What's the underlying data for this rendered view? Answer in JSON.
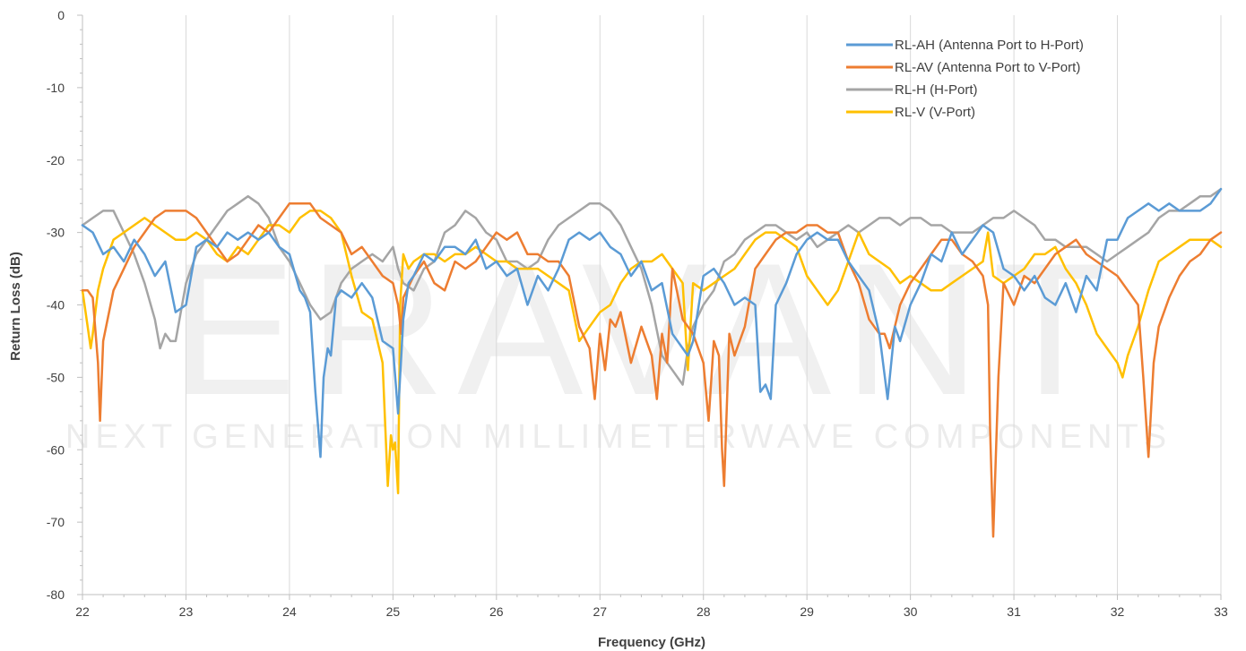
{
  "watermark": {
    "brand": "ERAVANT",
    "tagline": "NEXT GENERATION MILLIMETERWAVE COMPONENTS"
  },
  "chart_data": {
    "type": "line",
    "title": "",
    "xlabel": "Frequency (GHz)",
    "ylabel": "Return Loss (dB)",
    "xlim": [
      22,
      33
    ],
    "ylim": [
      -80,
      0
    ],
    "xticks": [
      22,
      23,
      24,
      25,
      26,
      27,
      28,
      29,
      30,
      31,
      32,
      33
    ],
    "yticks": [
      0,
      -10,
      -20,
      -30,
      -40,
      -50,
      -60,
      -70,
      -80
    ],
    "grid": "vertical-major",
    "legend": "top-right",
    "series": [
      {
        "name": "RL-AH (Antenna Port to H-Port)",
        "color": "#5b9bd5",
        "x": [
          22.0,
          22.1,
          22.2,
          22.3,
          22.4,
          22.5,
          22.6,
          22.7,
          22.8,
          22.9,
          23.0,
          23.1,
          23.2,
          23.3,
          23.4,
          23.5,
          23.6,
          23.7,
          23.8,
          23.9,
          24.0,
          24.1,
          24.15,
          24.2,
          24.25,
          24.3,
          24.33,
          24.37,
          24.4,
          24.45,
          24.5,
          24.6,
          24.7,
          24.8,
          24.9,
          25.0,
          25.05,
          25.1,
          25.15,
          25.2,
          25.3,
          25.4,
          25.5,
          25.6,
          25.7,
          25.8,
          25.9,
          26.0,
          26.1,
          26.2,
          26.3,
          26.4,
          26.5,
          26.6,
          26.7,
          26.8,
          26.9,
          27.0,
          27.1,
          27.2,
          27.3,
          27.4,
          27.5,
          27.6,
          27.7,
          27.8,
          27.85,
          27.9,
          28.0,
          28.1,
          28.2,
          28.3,
          28.4,
          28.5,
          28.55,
          28.6,
          28.65,
          28.7,
          28.8,
          28.9,
          29.0,
          29.1,
          29.2,
          29.3,
          29.4,
          29.5,
          29.6,
          29.7,
          29.78,
          29.85,
          29.9,
          30.0,
          30.1,
          30.2,
          30.3,
          30.4,
          30.5,
          30.6,
          30.7,
          30.8,
          30.9,
          31.0,
          31.1,
          31.2,
          31.3,
          31.4,
          31.5,
          31.6,
          31.7,
          31.8,
          31.9,
          32.0,
          32.1,
          32.2,
          32.3,
          32.4,
          32.5,
          32.6,
          32.7,
          32.8,
          32.9,
          33.0
        ],
        "y": [
          -29,
          -30,
          -33,
          -32,
          -34,
          -31,
          -33,
          -36,
          -34,
          -41,
          -40,
          -32,
          -31,
          -32,
          -30,
          -31,
          -30,
          -31,
          -30,
          -32,
          -33,
          -38,
          -39,
          -41,
          -52,
          -61,
          -50,
          -46,
          -47,
          -39,
          -38,
          -39,
          -37,
          -39,
          -45,
          -46,
          -55,
          -42,
          -37,
          -36,
          -33,
          -34,
          -32,
          -32,
          -33,
          -31,
          -35,
          -34,
          -36,
          -35,
          -40,
          -36,
          -38,
          -35,
          -31,
          -30,
          -31,
          -30,
          -32,
          -33,
          -36,
          -34,
          -38,
          -37,
          -44,
          -46,
          -47,
          -45,
          -36,
          -35,
          -37,
          -40,
          -39,
          -40,
          -52,
          -51,
          -53,
          -40,
          -37,
          -33,
          -31,
          -30,
          -31,
          -31,
          -34,
          -36,
          -38,
          -44,
          -53,
          -43,
          -45,
          -40,
          -37,
          -33,
          -34,
          -30,
          -33,
          -31,
          -29,
          -30,
          -35,
          -36,
          -38,
          -36,
          -39,
          -40,
          -37,
          -41,
          -36,
          -38,
          -31,
          -31,
          -28,
          -27,
          -26,
          -27,
          -26,
          -27,
          -27,
          -27,
          -26,
          -24
        ]
      },
      {
        "name": "RL-AV (Antenna Port to V-Port)",
        "color": "#ed7d31",
        "x": [
          22.0,
          22.05,
          22.1,
          22.15,
          22.17,
          22.2,
          22.3,
          22.4,
          22.5,
          22.6,
          22.7,
          22.8,
          22.9,
          23.0,
          23.1,
          23.2,
          23.3,
          23.4,
          23.5,
          23.6,
          23.7,
          23.8,
          23.9,
          24.0,
          24.1,
          24.2,
          24.3,
          24.4,
          24.5,
          24.6,
          24.7,
          24.8,
          24.9,
          25.0,
          25.05,
          25.08,
          25.1,
          25.2,
          25.3,
          25.4,
          25.5,
          25.6,
          25.7,
          25.8,
          25.9,
          26.0,
          26.1,
          26.2,
          26.3,
          26.4,
          26.5,
          26.6,
          26.7,
          26.8,
          26.9,
          26.95,
          27.0,
          27.05,
          27.1,
          27.15,
          27.2,
          27.3,
          27.4,
          27.5,
          27.55,
          27.6,
          27.65,
          27.7,
          27.8,
          27.9,
          28.0,
          28.05,
          28.1,
          28.15,
          28.18,
          28.2,
          28.25,
          28.3,
          28.4,
          28.5,
          28.6,
          28.7,
          28.8,
          28.9,
          29.0,
          29.1,
          29.2,
          29.3,
          29.4,
          29.5,
          29.6,
          29.7,
          29.75,
          29.8,
          29.9,
          30.0,
          30.1,
          30.2,
          30.3,
          30.4,
          30.5,
          30.6,
          30.7,
          30.75,
          30.77,
          30.8,
          30.85,
          30.9,
          31.0,
          31.1,
          31.2,
          31.3,
          31.4,
          31.5,
          31.6,
          31.7,
          31.8,
          31.9,
          32.0,
          32.1,
          32.2,
          32.25,
          32.3,
          32.35,
          32.4,
          32.5,
          32.6,
          32.7,
          32.8,
          32.9,
          33.0
        ],
        "y": [
          -38,
          -38,
          -39,
          -48,
          -56,
          -45,
          -38,
          -35,
          -32,
          -30,
          -28,
          -27,
          -27,
          -27,
          -28,
          -30,
          -32,
          -34,
          -33,
          -31,
          -29,
          -30,
          -28,
          -26,
          -26,
          -26,
          -28,
          -29,
          -30,
          -33,
          -32,
          -34,
          -36,
          -37,
          -40,
          -44,
          -39,
          -36,
          -34,
          -37,
          -38,
          -34,
          -35,
          -34,
          -32,
          -30,
          -31,
          -30,
          -33,
          -33,
          -34,
          -34,
          -36,
          -43,
          -46,
          -53,
          -44,
          -49,
          -42,
          -43,
          -41,
          -48,
          -43,
          -47,
          -53,
          -44,
          -48,
          -35,
          -42,
          -44,
          -48,
          -56,
          -45,
          -47,
          -60,
          -65,
          -44,
          -47,
          -43,
          -35,
          -33,
          -31,
          -30,
          -30,
          -29,
          -29,
          -30,
          -30,
          -34,
          -37,
          -42,
          -44,
          -44,
          -46,
          -40,
          -37,
          -35,
          -33,
          -31,
          -31,
          -33,
          -34,
          -36,
          -40,
          -57,
          -72,
          -50,
          -37,
          -40,
          -36,
          -37,
          -35,
          -33,
          -32,
          -31,
          -33,
          -34,
          -35,
          -36,
          -38,
          -40,
          -50,
          -61,
          -48,
          -43,
          -39,
          -36,
          -34,
          -33,
          -31,
          -30
        ]
      },
      {
        "name": "RL-H (H-Port)",
        "color": "#a5a5a5",
        "x": [
          22.0,
          22.1,
          22.2,
          22.3,
          22.4,
          22.5,
          22.6,
          22.7,
          22.75,
          22.8,
          22.85,
          22.9,
          23.0,
          23.1,
          23.2,
          23.3,
          23.4,
          23.5,
          23.6,
          23.7,
          23.8,
          23.9,
          24.0,
          24.1,
          24.2,
          24.3,
          24.4,
          24.5,
          24.6,
          24.7,
          24.8,
          24.9,
          25.0,
          25.05,
          25.1,
          25.2,
          25.3,
          25.4,
          25.5,
          25.6,
          25.7,
          25.8,
          25.9,
          26.0,
          26.1,
          26.2,
          26.3,
          26.4,
          26.5,
          26.6,
          26.7,
          26.8,
          26.9,
          27.0,
          27.1,
          27.2,
          27.3,
          27.4,
          27.5,
          27.6,
          27.7,
          27.8,
          27.85,
          27.9,
          28.0,
          28.1,
          28.2,
          28.3,
          28.4,
          28.5,
          28.6,
          28.7,
          28.8,
          28.9,
          29.0,
          29.1,
          29.2,
          29.3,
          29.4,
          29.5,
          29.6,
          29.7,
          29.8,
          29.9,
          30.0,
          30.1,
          30.2,
          30.3,
          30.4,
          30.5,
          30.6,
          30.7,
          30.8,
          30.9,
          31.0,
          31.1,
          31.2,
          31.3,
          31.4,
          31.5,
          31.6,
          31.7,
          31.8,
          31.9,
          32.0,
          32.1,
          32.2,
          32.3,
          32.4,
          32.5,
          32.6,
          32.7,
          32.8,
          32.9,
          33.0
        ],
        "y": [
          -29,
          -28,
          -27,
          -27,
          -30,
          -33,
          -37,
          -42,
          -46,
          -44,
          -45,
          -45,
          -37,
          -33,
          -31,
          -29,
          -27,
          -26,
          -25,
          -26,
          -28,
          -32,
          -34,
          -37,
          -40,
          -42,
          -41,
          -37,
          -35,
          -34,
          -33,
          -34,
          -32,
          -35,
          -37,
          -38,
          -35,
          -34,
          -30,
          -29,
          -27,
          -28,
          -30,
          -31,
          -34,
          -34,
          -35,
          -34,
          -31,
          -29,
          -28,
          -27,
          -26,
          -26,
          -27,
          -29,
          -32,
          -35,
          -40,
          -47,
          -49,
          -51,
          -46,
          -43,
          -40,
          -38,
          -34,
          -33,
          -31,
          -30,
          -29,
          -29,
          -30,
          -31,
          -30,
          -32,
          -31,
          -30,
          -29,
          -30,
          -29,
          -28,
          -28,
          -29,
          -28,
          -28,
          -29,
          -29,
          -30,
          -30,
          -30,
          -29,
          -28,
          -28,
          -27,
          -28,
          -29,
          -31,
          -31,
          -32,
          -32,
          -32,
          -33,
          -34,
          -33,
          -32,
          -31,
          -30,
          -28,
          -27,
          -27,
          -26,
          -25,
          -25,
          -24
        ]
      },
      {
        "name": "RL-V (V-Port)",
        "color": "#ffc000",
        "x": [
          22.0,
          22.05,
          22.08,
          22.1,
          22.15,
          22.2,
          22.3,
          22.4,
          22.5,
          22.6,
          22.7,
          22.8,
          22.9,
          23.0,
          23.1,
          23.2,
          23.3,
          23.4,
          23.5,
          23.6,
          23.7,
          23.8,
          23.9,
          24.0,
          24.1,
          24.2,
          24.3,
          24.4,
          24.5,
          24.6,
          24.7,
          24.8,
          24.9,
          24.95,
          24.98,
          25.0,
          25.02,
          25.05,
          25.07,
          25.1,
          25.15,
          25.2,
          25.3,
          25.4,
          25.5,
          25.6,
          25.7,
          25.8,
          25.9,
          26.0,
          26.1,
          26.2,
          26.3,
          26.4,
          26.5,
          26.6,
          26.7,
          26.8,
          26.9,
          27.0,
          27.1,
          27.2,
          27.3,
          27.4,
          27.5,
          27.6,
          27.7,
          27.8,
          27.85,
          27.9,
          28.0,
          28.1,
          28.2,
          28.3,
          28.4,
          28.5,
          28.6,
          28.7,
          28.8,
          28.9,
          29.0,
          29.1,
          29.2,
          29.3,
          29.4,
          29.5,
          29.6,
          29.7,
          29.8,
          29.9,
          30.0,
          30.1,
          30.2,
          30.3,
          30.4,
          30.5,
          30.6,
          30.7,
          30.75,
          30.8,
          30.9,
          31.0,
          31.1,
          31.2,
          31.3,
          31.4,
          31.5,
          31.6,
          31.7,
          31.8,
          31.9,
          32.0,
          32.05,
          32.1,
          32.2,
          32.3,
          32.4,
          32.5,
          32.6,
          32.7,
          32.8,
          32.9,
          33.0
        ],
        "y": [
          -38,
          -43,
          -46,
          -44,
          -38,
          -35,
          -31,
          -30,
          -29,
          -28,
          -29,
          -30,
          -31,
          -31,
          -30,
          -31,
          -33,
          -34,
          -32,
          -33,
          -31,
          -29,
          -29,
          -30,
          -28,
          -27,
          -27,
          -28,
          -30,
          -36,
          -41,
          -42,
          -48,
          -65,
          -58,
          -60,
          -59,
          -66,
          -40,
          -33,
          -35,
          -34,
          -33,
          -33,
          -34,
          -33,
          -33,
          -32,
          -33,
          -34,
          -34,
          -35,
          -35,
          -35,
          -36,
          -37,
          -38,
          -45,
          -43,
          -41,
          -40,
          -37,
          -35,
          -34,
          -34,
          -33,
          -35,
          -37,
          -49,
          -37,
          -38,
          -37,
          -36,
          -35,
          -33,
          -31,
          -30,
          -30,
          -31,
          -32,
          -36,
          -38,
          -40,
          -38,
          -34,
          -30,
          -33,
          -34,
          -35,
          -37,
          -36,
          -37,
          -38,
          -38,
          -37,
          -36,
          -35,
          -34,
          -30,
          -36,
          -37,
          -36,
          -35,
          -33,
          -33,
          -32,
          -35,
          -37,
          -40,
          -44,
          -46,
          -48,
          -50,
          -47,
          -43,
          -38,
          -34,
          -33,
          -32,
          -31,
          -31,
          -31,
          -32
        ]
      }
    ]
  }
}
